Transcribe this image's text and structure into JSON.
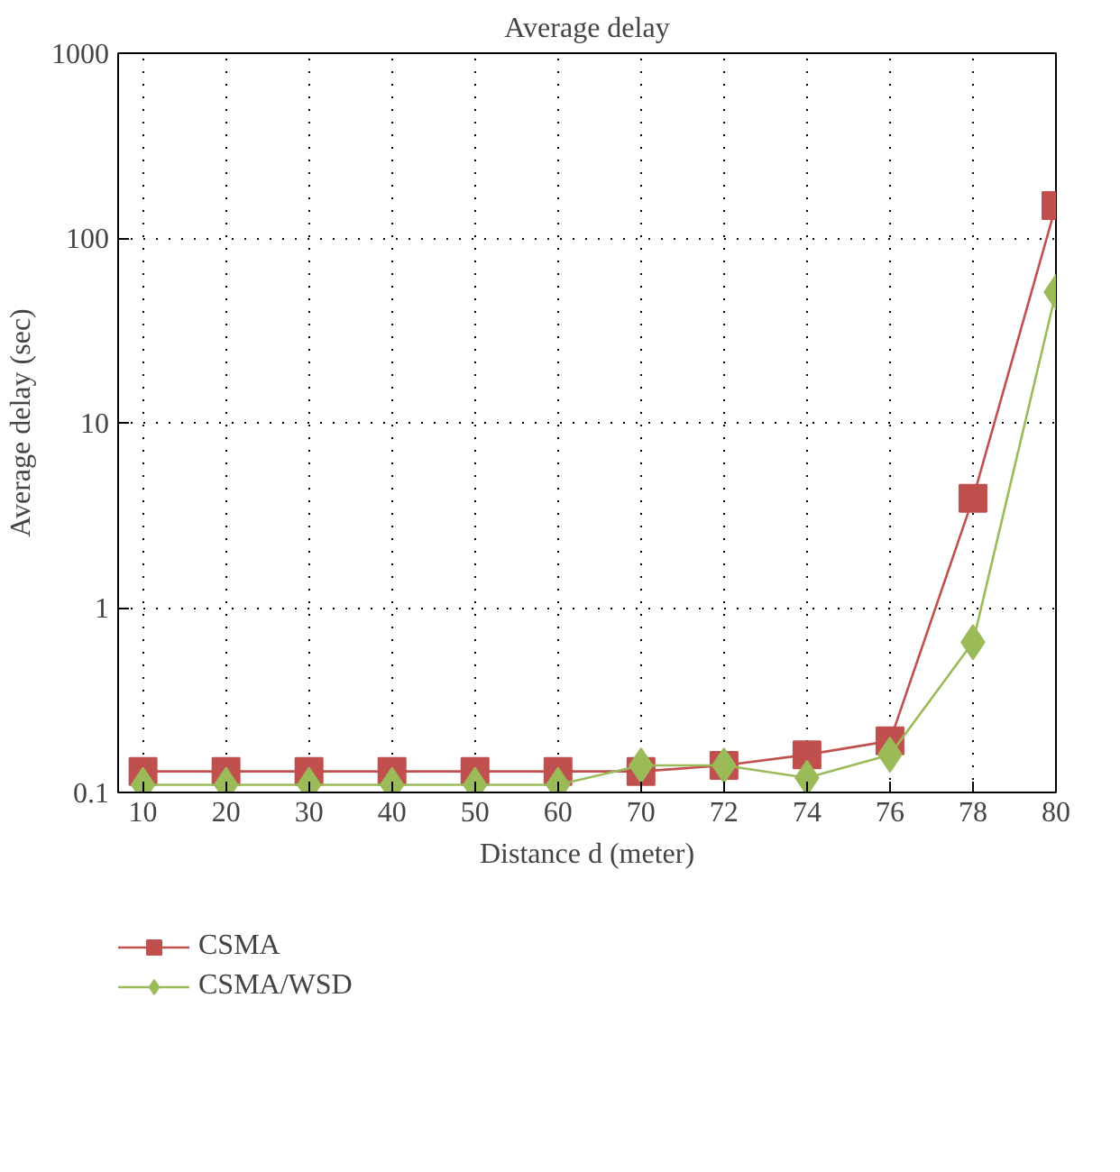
{
  "chart_data": {
    "type": "line",
    "title": "Average delay",
    "xlabel": "Distance d (meter)",
    "ylabel": "Average delay (sec)",
    "categories": [
      "10",
      "20",
      "30",
      "40",
      "50",
      "60",
      "70",
      "72",
      "74",
      "76",
      "78",
      "80"
    ],
    "log": "y",
    "ylim": [
      0.1,
      1000
    ],
    "yticks": [
      0.1,
      1,
      10,
      100,
      1000
    ],
    "grid": true,
    "legend": "bottom left",
    "line_style": "solid",
    "series": [
      {
        "name": "CSMA",
        "color": "#c0504d",
        "marker": "square",
        "values": [
          0.13,
          0.13,
          0.13,
          0.13,
          0.13,
          0.13,
          0.13,
          0.14,
          0.16,
          0.19,
          3.9,
          150
        ]
      },
      {
        "name": "CSMA/WSD",
        "color": "#9bbb59",
        "marker": "diamond",
        "values": [
          0.11,
          0.11,
          0.11,
          0.11,
          0.11,
          0.11,
          0.14,
          0.14,
          0.12,
          0.16,
          0.65,
          51
        ]
      }
    ]
  }
}
